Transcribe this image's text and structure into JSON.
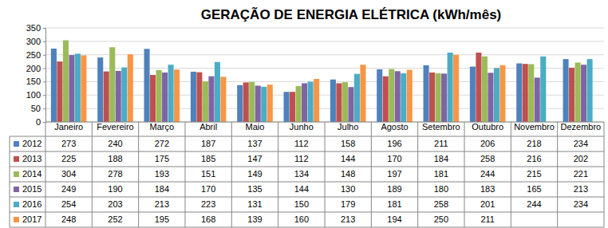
{
  "chart_data": {
    "type": "bar",
    "title": "GERAÇÃO DE ENERGIA ELÉTRICA (kWh/mês)",
    "categories": [
      "Janeiro",
      "Fevereiro",
      "Março",
      "Abril",
      "Maio",
      "Junho",
      "Julho",
      "Agosto",
      "Setembro",
      "Outubro",
      "Novembro",
      "Dezembro"
    ],
    "series": [
      {
        "name": "2012",
        "color": "#4f81bd",
        "values": [
          273,
          240,
          272,
          187,
          137,
          112,
          158,
          196,
          211,
          206,
          218,
          234
        ]
      },
      {
        "name": "2013",
        "color": "#c0504d",
        "values": [
          225,
          188,
          175,
          185,
          147,
          112,
          144,
          170,
          184,
          258,
          216,
          202
        ]
      },
      {
        "name": "2014",
        "color": "#9bbb59",
        "values": [
          304,
          278,
          193,
          151,
          149,
          134,
          148,
          197,
          181,
          244,
          215,
          221
        ]
      },
      {
        "name": "2015",
        "color": "#8064a2",
        "values": [
          249,
          190,
          184,
          170,
          135,
          144,
          130,
          189,
          180,
          183,
          165,
          213
        ]
      },
      {
        "name": "2016",
        "color": "#4bacc6",
        "values": [
          254,
          203,
          213,
          223,
          131,
          150,
          179,
          181,
          258,
          201,
          244,
          234
        ]
      },
      {
        "name": "2017",
        "color": "#f79646",
        "values": [
          248,
          252,
          195,
          168,
          139,
          160,
          213,
          194,
          250,
          211,
          null,
          null
        ]
      }
    ],
    "ylim": [
      0,
      350
    ],
    "yticks": [
      0,
      50,
      100,
      150,
      200,
      250,
      300,
      350
    ],
    "grid": true
  }
}
